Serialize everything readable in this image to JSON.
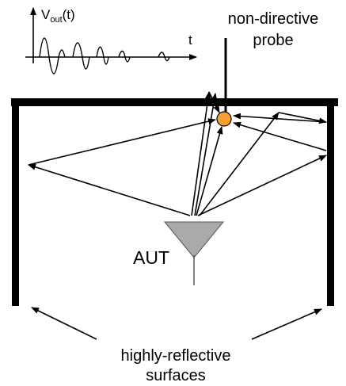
{
  "waveform": {
    "v": "V",
    "sub": "out",
    "arg": "(t)",
    "t_axis": "t"
  },
  "probe_label": {
    "line1": "non-directive",
    "line2": "probe"
  },
  "aut_label": "AUT",
  "surfaces_label": {
    "line1": "highly-reflective",
    "line2": "surfaces"
  }
}
